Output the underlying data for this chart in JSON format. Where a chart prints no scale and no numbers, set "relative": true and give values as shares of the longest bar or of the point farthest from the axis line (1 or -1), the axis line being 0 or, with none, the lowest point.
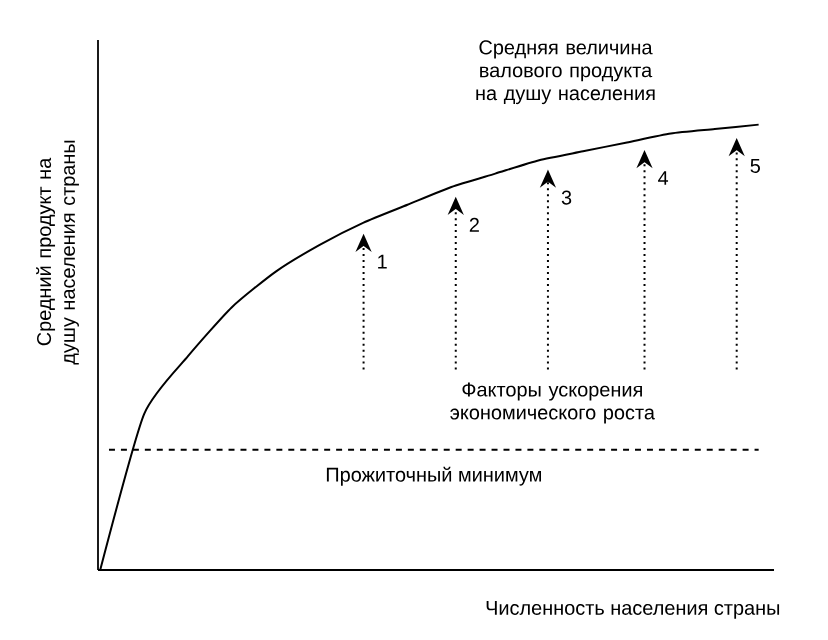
{
  "chart_data": {
    "type": "line",
    "relative": true,
    "xlabel": "Численность населения страны",
    "ylabel": "Средний продукт на душу населения страны",
    "categories": [
      null,
      null,
      null,
      null,
      null,
      null,
      null,
      null,
      null,
      null,
      null,
      null,
      null,
      null,
      null,
      null
    ],
    "series": [
      {
        "color": "#000000",
        "values": [
          0.0,
          0.35,
          0.48,
          0.59,
          0.67,
          0.73,
          0.78,
          0.82,
          0.86,
          0.89,
          0.92,
          0.94,
          0.96,
          0.98,
          0.99,
          1.0
        ]
      }
    ],
    "marker": "none",
    "line_style": "solid",
    "ref_lines": [
      {
        "axis": "y",
        "value": 0.27,
        "label": "Прожиточный минимум",
        "color": "#000000",
        "line_style": "dashed"
      }
    ],
    "annotations": [
      "Средняя величина валового продукта на душу населения",
      "Факторы ускорения экономического роста",
      "1",
      "2",
      "3",
      "4",
      "5"
    ]
  }
}
